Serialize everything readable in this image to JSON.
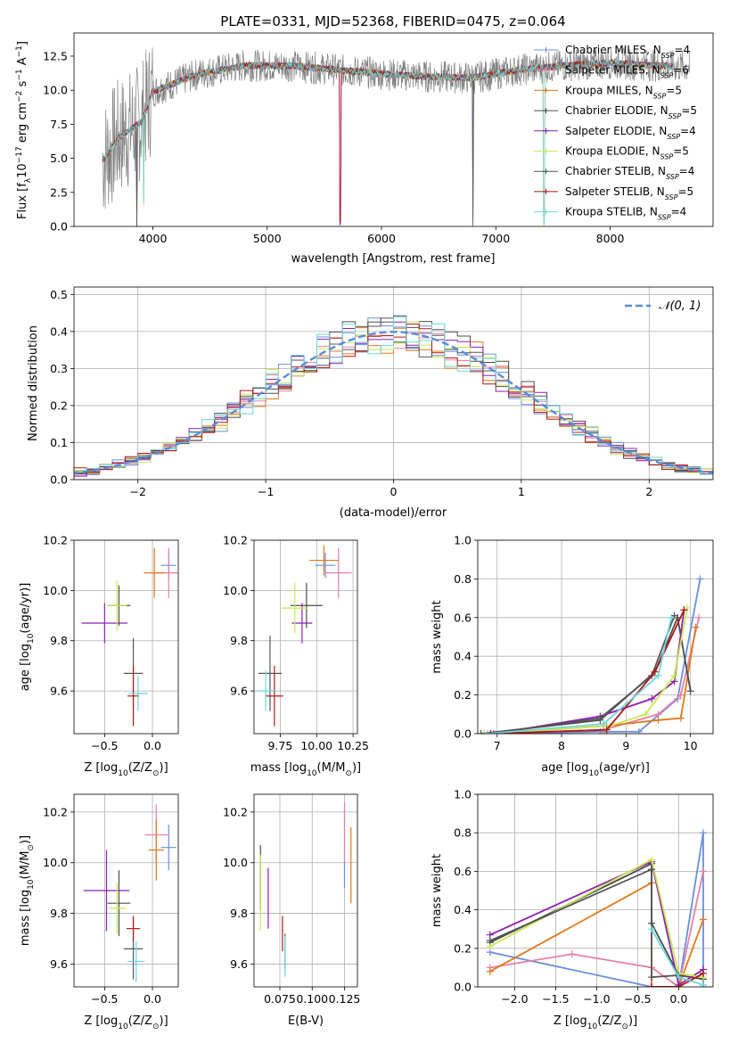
{
  "figure": {
    "title": "PLATE=0331, MJD=52368, FIBERID=0475, z=0.064"
  },
  "colors": {
    "series": [
      "#6a8fdc",
      "#e880a8",
      "#e07a1e",
      "#4c4c4c",
      "#8e20b0",
      "#c5ea55",
      "#555555",
      "#b01818",
      "#6ed6dc"
    ],
    "gauss": "#5b8bd9",
    "grid": "#b0b0b0"
  },
  "chart_data": [
    {
      "id": "spectrum",
      "type": "line",
      "title": "PLATE=0331, MJD=52368, FIBERID=0475, z=0.064",
      "xlabel": "wavelength [Angstrom, rest frame]",
      "ylabel_main": "Flux [f",
      "ylabel_sub1": "λ",
      "ylabel_mid": "10",
      "ylabel_sup1": "−17",
      "ylabel_tail": " erg cm",
      "ylabel_sup2": "−2",
      "ylabel_tail2": " s",
      "ylabel_sup3": "−1",
      "ylabel_tail3": " A",
      "ylabel_sup4": "−1",
      "ylabel_end": "]",
      "xlim": [
        3310,
        8900
      ],
      "ylim": [
        0,
        14.2
      ],
      "xticks": [
        4000,
        5000,
        6000,
        7000,
        8000
      ],
      "xtick_labels": [
        "4000",
        "5000",
        "6000",
        "7000",
        "8000"
      ],
      "yticks": [
        0,
        2.5,
        5,
        7.5,
        10,
        12.5
      ],
      "ytick_labels": [
        "0.0",
        "2.5",
        "5.0",
        "7.5",
        "10.0",
        "12.5"
      ],
      "grid": false,
      "legend_position": "upper-right",
      "continuum_nodes": [
        [
          3560,
          4.8
        ],
        [
          3700,
          6.5
        ],
        [
          3900,
          7.7
        ],
        [
          4000,
          9.9
        ],
        [
          4400,
          11.2
        ],
        [
          4800,
          11.8
        ],
        [
          5200,
          11.8
        ],
        [
          5600,
          11.5
        ],
        [
          6000,
          11.2
        ],
        [
          6400,
          11.0
        ],
        [
          6800,
          10.9
        ],
        [
          7200,
          11.5
        ],
        [
          7600,
          11.8
        ],
        [
          8000,
          12.0
        ],
        [
          8400,
          11.8
        ],
        [
          8700,
          11.7
        ]
      ],
      "data_range": [
        3560,
        8700
      ],
      "data_noise_amplitude": [
        4.5,
        1.2
      ],
      "model_range": [
        3560,
        8550
      ],
      "model_dips": [
        {
          "wavelength": 3860,
          "depth": 7.7
        },
        {
          "wavelength": 3920,
          "depth": 6.5
        },
        {
          "wavelength": 5640,
          "depth": 11.2
        },
        {
          "wavelength": 6800,
          "depth": 10.8
        },
        {
          "wavelength": 7420,
          "depth": 11.5
        }
      ],
      "series": [
        {
          "name": "Chabrier MILES",
          "nssp": "4"
        },
        {
          "name": "Salpeter MILES",
          "nssp": "6"
        },
        {
          "name": "Kroupa MILES",
          "nssp": "5"
        },
        {
          "name": "Chabrier ELODIE",
          "nssp": "5"
        },
        {
          "name": "Salpeter ELODIE",
          "nssp": "4"
        },
        {
          "name": "Kroupa ELODIE",
          "nssp": "5"
        },
        {
          "name": "Chabrier STELIB",
          "nssp": "4"
        },
        {
          "name": "Salpeter STELIB",
          "nssp": "5"
        },
        {
          "name": "Kroupa STELIB",
          "nssp": "4"
        }
      ],
      "nssp_label": "N",
      "nssp_sub": "SSP"
    },
    {
      "id": "residuals",
      "type": "line",
      "xlabel": "(data-model)/error",
      "ylabel": "Normed distribution",
      "xlim": [
        -2.5,
        2.5
      ],
      "ylim": [
        0,
        0.52
      ],
      "xticks": [
        -2,
        -1,
        0,
        1,
        2
      ],
      "xtick_labels": [
        "−2",
        "−1",
        "0",
        "1",
        "2"
      ],
      "yticks": [
        0,
        0.1,
        0.2,
        0.3,
        0.4,
        0.5
      ],
      "ytick_labels": [
        "0.0",
        "0.1",
        "0.2",
        "0.3",
        "0.4",
        "0.5"
      ],
      "grid": true,
      "legend_position": "upper-right",
      "legend_label": "𝒩(0, 1)",
      "bin_width": 0.1,
      "gaussian": {
        "mean": 0,
        "sigma": 1
      }
    },
    {
      "id": "age-vs-Z",
      "type": "scatter",
      "xlabel": "Z [log",
      "xlabel_sub": "10",
      "xlabel_tail": "(Z/Z",
      "xlabel_sub2": "⊙",
      "xlabel_end": ")]",
      "ylabel": "age  [log",
      "ylabel_sub": "10",
      "ylabel_tail": "(age/yr)]",
      "xlim": [
        -0.82,
        0.27
      ],
      "ylim": [
        9.43,
        10.2
      ],
      "xticks": [
        -0.5,
        0.0
      ],
      "xtick_labels": [
        "−0.5",
        "0.0"
      ],
      "yticks": [
        9.6,
        9.8,
        10.0,
        10.2
      ],
      "ytick_labels": [
        "9.6",
        "9.8",
        "10.0",
        "10.2"
      ],
      "grid": true,
      "points": [
        {
          "x": 0.17,
          "y": 10.1,
          "xerr": 0.08,
          "yerr": 0.05
        },
        {
          "x": 0.17,
          "y": 10.07,
          "xerr": 0.15,
          "yerr": 0.1
        },
        {
          "x": 0.02,
          "y": 10.07,
          "xerr": 0.11,
          "yerr": 0.1
        },
        {
          "x": -0.35,
          "y": 9.94,
          "xerr": 0.12,
          "yerr": 0.08
        },
        {
          "x": -0.5,
          "y": 9.87,
          "xerr": 0.24,
          "yerr": 0.08
        },
        {
          "x": -0.37,
          "y": 9.94,
          "xerr": 0.1,
          "yerr": 0.1
        },
        {
          "x": -0.2,
          "y": 9.67,
          "xerr": 0.1,
          "yerr": 0.14
        },
        {
          "x": -0.2,
          "y": 9.58,
          "xerr": 0.06,
          "yerr": 0.12
        },
        {
          "x": -0.15,
          "y": 9.59,
          "xerr": 0.1,
          "yerr": 0.07
        }
      ]
    },
    {
      "id": "age-vs-mass",
      "type": "scatter",
      "xlabel": "mass [log",
      "xlabel_sub": "10",
      "xlabel_tail": "(M/M",
      "xlabel_sub2": "⊙",
      "xlabel_end": ")]",
      "xlim": [
        9.57,
        10.28
      ],
      "ylim": [
        9.43,
        10.2
      ],
      "xticks": [
        9.75,
        10.0,
        10.25
      ],
      "xtick_labels": [
        "9.75",
        "10.00",
        "10.25"
      ],
      "yticks": [
        9.6,
        9.8,
        10.0,
        10.2
      ],
      "ytick_labels": [
        "9.6",
        "9.8",
        "10.0",
        "10.2"
      ],
      "grid": true,
      "points": [
        {
          "x": 10.06,
          "y": 10.1,
          "xerr": 0.07,
          "yerr": 0.05
        },
        {
          "x": 10.15,
          "y": 10.07,
          "xerr": 0.09,
          "yerr": 0.1
        },
        {
          "x": 10.05,
          "y": 10.12,
          "xerr": 0.1,
          "yerr": 0.06
        },
        {
          "x": 9.93,
          "y": 9.94,
          "xerr": 0.11,
          "yerr": 0.09
        },
        {
          "x": 9.9,
          "y": 9.87,
          "xerr": 0.07,
          "yerr": 0.08
        },
        {
          "x": 9.85,
          "y": 9.93,
          "xerr": 0.09,
          "yerr": 0.1
        },
        {
          "x": 9.68,
          "y": 9.67,
          "xerr": 0.08,
          "yerr": 0.15
        },
        {
          "x": 9.71,
          "y": 9.58,
          "xerr": 0.06,
          "yerr": 0.12
        },
        {
          "x": 9.65,
          "y": 9.6,
          "xerr": 0.06,
          "yerr": 0.08
        }
      ]
    },
    {
      "id": "mass-weight-vs-age",
      "type": "line",
      "xlabel": "age  [log",
      "xlabel_sub": "10",
      "xlabel_tail": "(age/yr)]",
      "ylabel": "mass weight",
      "xlim": [
        6.7,
        10.35
      ],
      "ylim": [
        0,
        1.0
      ],
      "xticks": [
        7,
        8,
        9,
        10
      ],
      "xtick_labels": [
        "7",
        "8",
        "9",
        "10"
      ],
      "yticks": [
        0,
        0.2,
        0.4,
        0.6,
        0.8,
        1.0
      ],
      "ytick_labels": [
        "0.0",
        "0.2",
        "0.4",
        "0.6",
        "0.8",
        "1.0"
      ],
      "grid": true,
      "series": [
        {
          "x": [
            6.8,
            8.6,
            9.2,
            9.8,
            10.15
          ],
          "y": [
            0.0,
            0.01,
            0.01,
            0.18,
            0.8
          ]
        },
        {
          "x": [
            6.85,
            8.65,
            9.5,
            9.85,
            10.13
          ],
          "y": [
            0.0,
            0.02,
            0.1,
            0.2,
            0.6
          ]
        },
        {
          "x": [
            6.9,
            8.7,
            9.5,
            9.85,
            10.08
          ],
          "y": [
            0.0,
            0.04,
            0.07,
            0.08,
            0.55
          ]
        },
        {
          "x": [
            6.75,
            8.6,
            9.45,
            9.8,
            10.0
          ],
          "y": [
            0.0,
            0.07,
            0.32,
            0.6,
            0.22
          ]
        },
        {
          "x": [
            6.95,
            8.6,
            9.4,
            9.75,
            9.9
          ],
          "y": [
            0.0,
            0.09,
            0.18,
            0.27,
            0.64
          ]
        },
        {
          "x": [
            6.8,
            8.75,
            9.3,
            9.75,
            9.95
          ],
          "y": [
            0.0,
            0.04,
            0.1,
            0.3,
            0.65
          ]
        },
        {
          "x": [
            6.9,
            8.6,
            9.4,
            9.75
          ],
          "y": [
            0.0,
            0.08,
            0.3,
            0.61
          ]
        },
        {
          "x": [
            6.9,
            8.7,
            9.45,
            9.9
          ],
          "y": [
            0.0,
            0.02,
            0.32,
            0.64
          ]
        },
        {
          "x": [
            6.85,
            8.65,
            9.5,
            9.7
          ],
          "y": [
            0.0,
            0.05,
            0.3,
            0.6
          ]
        }
      ]
    },
    {
      "id": "mass-vs-Z",
      "type": "scatter",
      "xlabel": "Z [log",
      "xlabel_sub": "10",
      "xlabel_tail": "(Z/Z",
      "xlabel_sub2": "⊙",
      "xlabel_end": ")]",
      "ylabel": "mass [log",
      "ylabel_sub": "10",
      "ylabel_tail": "(M/M",
      "ylabel_sub2": "⊙",
      "ylabel_end": ")]",
      "xlim": [
        -0.82,
        0.27
      ],
      "ylim": [
        9.51,
        10.27
      ],
      "xticks": [
        -0.5,
        0.0
      ],
      "xtick_labels": [
        "−0.5",
        "0.0"
      ],
      "yticks": [
        9.6,
        9.8,
        10.0,
        10.2
      ],
      "ytick_labels": [
        "9.6",
        "9.8",
        "10.0",
        "10.2"
      ],
      "grid": true,
      "points": [
        {
          "x": 0.17,
          "y": 10.06,
          "xerr": 0.08,
          "yerr": 0.09
        },
        {
          "x": 0.04,
          "y": 10.11,
          "xerr": 0.12,
          "yerr": 0.12
        },
        {
          "x": 0.04,
          "y": 10.05,
          "xerr": 0.08,
          "yerr": 0.12
        },
        {
          "x": -0.35,
          "y": 9.84,
          "xerr": 0.12,
          "yerr": 0.13
        },
        {
          "x": -0.48,
          "y": 9.89,
          "xerr": 0.24,
          "yerr": 0.16
        },
        {
          "x": -0.37,
          "y": 9.82,
          "xerr": 0.09,
          "yerr": 0.1
        },
        {
          "x": -0.2,
          "y": 9.66,
          "xerr": 0.1,
          "yerr": 0.12
        },
        {
          "x": -0.2,
          "y": 9.74,
          "xerr": 0.07,
          "yerr": 0.05
        },
        {
          "x": -0.17,
          "y": 9.61,
          "xerr": 0.09,
          "yerr": 0.08
        }
      ]
    },
    {
      "id": "mass-vs-ebv",
      "type": "scatter",
      "xlabel": "E(B-V)",
      "xlim": [
        0.055,
        0.135
      ],
      "ylim": [
        9.51,
        10.27
      ],
      "xticks": [
        0.075,
        0.1,
        0.125
      ],
      "xtick_labels": [
        "0.075",
        "0.100",
        "0.125"
      ],
      "yticks": [
        9.6,
        9.8,
        10.0,
        10.2
      ],
      "ytick_labels": [
        "9.6",
        "9.8",
        "10.0",
        "10.2"
      ],
      "grid": true,
      "points": [
        {
          "x": 0.125,
          "y": 10.06,
          "xerr": 0,
          "yerr": 0.16
        },
        {
          "x": 0.125,
          "y": 10.12,
          "xerr": 0,
          "yerr": 0.12
        },
        {
          "x": 0.13,
          "y": 9.99,
          "xerr": 0,
          "yerr": 0.15
        },
        {
          "x": 0.06,
          "y": 9.94,
          "xerr": 0,
          "yerr": 0.13
        },
        {
          "x": 0.066,
          "y": 9.86,
          "xerr": 0,
          "yerr": 0.12
        },
        {
          "x": 0.06,
          "y": 9.88,
          "xerr": 0,
          "yerr": 0.15
        },
        {
          "x": 0.079,
          "y": 9.65,
          "xerr": 0,
          "yerr": 0.07
        },
        {
          "x": 0.077,
          "y": 9.72,
          "xerr": 0,
          "yerr": 0.07
        },
        {
          "x": 0.079,
          "y": 9.63,
          "xerr": 0,
          "yerr": 0.08
        }
      ]
    },
    {
      "id": "mass-weight-vs-Z",
      "type": "line",
      "xlabel": "Z [log",
      "xlabel_sub": "10",
      "xlabel_tail": "(Z/Z",
      "xlabel_sub2": "⊙",
      "xlabel_end": ")]",
      "ylabel": "mass weight",
      "xlim": [
        -2.45,
        0.42
      ],
      "ylim": [
        0,
        1.0
      ],
      "xticks": [
        -2.0,
        -1.5,
        -1.0,
        -0.5,
        0.0
      ],
      "xtick_labels": [
        "−2.0",
        "−1.5",
        "−1.0",
        "−0.5",
        "0.0"
      ],
      "yticks": [
        0,
        0.2,
        0.4,
        0.6,
        0.8,
        1.0
      ],
      "ytick_labels": [
        "0.0",
        "0.2",
        "0.4",
        "0.6",
        "0.8",
        "1.0"
      ],
      "grid": true,
      "series": [
        {
          "x": [
            -2.3,
            -0.33,
            0.0,
            0.3,
            0.3
          ],
          "y": [
            0.18,
            0.0,
            0.0,
            0.8,
            0.0
          ]
        },
        {
          "x": [
            -2.3,
            -1.3,
            -0.33,
            0.0,
            0.3
          ],
          "y": [
            0.1,
            0.17,
            0.1,
            0.0,
            0.6
          ]
        },
        {
          "x": [
            -2.3,
            -0.33,
            -0.33,
            0.0,
            0.3
          ],
          "y": [
            0.08,
            0.54,
            0.0,
            0.0,
            0.35
          ]
        },
        {
          "x": [
            -2.3,
            -0.33,
            -0.33,
            0.0,
            0.3
          ],
          "y": [
            0.23,
            0.64,
            0.33,
            0.06,
            0.04
          ]
        },
        {
          "x": [
            -2.3,
            -0.33,
            0.0,
            0.3
          ],
          "y": [
            0.27,
            0.65,
            0.01,
            0.09
          ]
        },
        {
          "x": [
            -2.3,
            -0.33,
            0.0,
            0.3
          ],
          "y": [
            0.21,
            0.66,
            0.07,
            0.05
          ]
        },
        {
          "x": [
            -2.3,
            -0.33,
            -0.33,
            0.0
          ],
          "y": [
            0.24,
            0.61,
            0.05,
            0.06
          ]
        },
        {
          "x": [
            -0.33,
            0.0,
            0.3
          ],
          "y": [
            0.0,
            0.0,
            0.07
          ]
        },
        {
          "x": [
            -0.33,
            0.0,
            0.3
          ],
          "y": [
            0.3,
            0.05,
            0.01
          ]
        }
      ]
    }
  ]
}
